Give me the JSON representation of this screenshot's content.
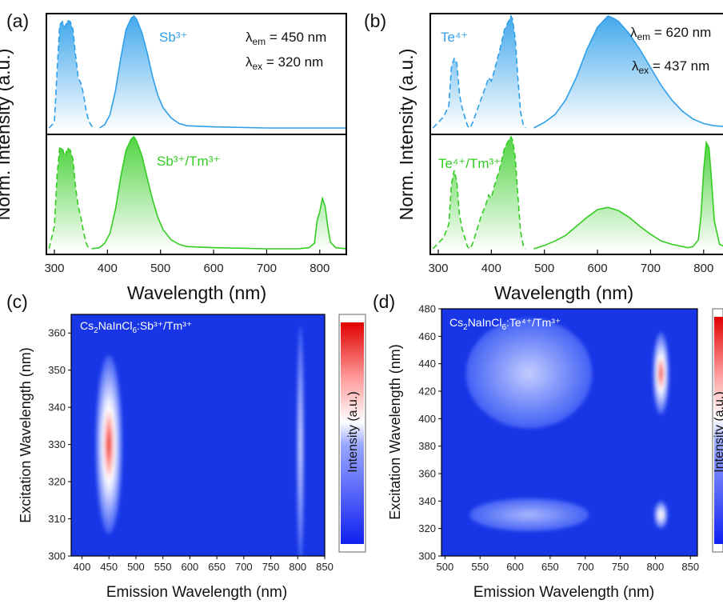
{
  "panels": {
    "a": {
      "label": "(a)"
    },
    "b": {
      "label": "(b)"
    },
    "c": {
      "label": "(c)"
    },
    "d": {
      "label": "(d)"
    }
  },
  "text": {
    "norm_intensity": "Norm. Intensity (a.u.)",
    "wavelength_nm": "Wavelength (nm)",
    "excitation_wavelength": "Excitation Wavelength (nm)",
    "emission_wavelength": "Emission Wavelength (nm)",
    "intensity_au": "Intensity (a.u.)",
    "sb": "Sb³⁺",
    "sbtm": "Sb³⁺/Tm³⁺",
    "te": "Te⁴⁺",
    "tetm": "Te⁴⁺/Tm³⁺",
    "a_em_sym": "λ",
    "a_em_sub": "em",
    "a_em_val": " = 450 nm",
    "a_ex_sym": "λ",
    "a_ex_sub": "ex",
    "a_ex_val": " = 320 nm",
    "b_em_sym": "λ",
    "b_em_sub": "em",
    "b_em_val": " = 620 nm",
    "b_ex_sym": "λ",
    "b_ex_sub": "ex",
    "b_ex_val": " = 437 nm",
    "c_title_pre": "Cs",
    "c_title_2": "2",
    "c_title_mid": "NaInCl",
    "c_title_6": "6",
    "c_title_post": ":Sb³⁺/Tm³⁺",
    "d_title_pre": "Cs",
    "d_title_2": "2",
    "d_title_mid": "NaInCl",
    "d_title_6": "6",
    "d_title_post": ":Te⁴⁺/Tm³⁺"
  },
  "colors": {
    "blue": "#2f9fea",
    "green": "#33cc22",
    "map_low": "#1836e6",
    "map_high": "#e01818"
  },
  "chart_data": [
    {
      "id": "a",
      "type": "line",
      "xlabel": "Wavelength (nm)",
      "ylabel": "Norm. Intensity (a.u.)",
      "xlim": [
        285,
        850
      ],
      "x_ticks": [
        300,
        400,
        500,
        600,
        700,
        800
      ],
      "series": [
        {
          "name": "Sb³⁺",
          "kind": "excitation",
          "style": "dashed",
          "x": [
            290,
            300,
            305,
            310,
            315,
            320,
            325,
            330,
            335,
            340,
            345,
            350,
            355,
            360,
            365,
            370,
            375
          ],
          "y": [
            0.0,
            0.05,
            0.5,
            0.92,
            0.95,
            0.9,
            0.96,
            0.95,
            0.88,
            0.65,
            0.45,
            0.4,
            0.3,
            0.15,
            0.06,
            0.02,
            0.0
          ]
        },
        {
          "name": "Sb³⁺",
          "kind": "emission",
          "style": "solid",
          "x": [
            385,
            395,
            405,
            415,
            425,
            435,
            445,
            450,
            455,
            465,
            475,
            485,
            495,
            505,
            520,
            535,
            550,
            600,
            700,
            800,
            850
          ],
          "y": [
            0.0,
            0.03,
            0.12,
            0.33,
            0.62,
            0.88,
            0.98,
            1.0,
            0.97,
            0.85,
            0.67,
            0.46,
            0.29,
            0.18,
            0.09,
            0.04,
            0.02,
            0.01,
            0.0,
            0.0,
            0.0
          ]
        },
        {
          "name": "Sb³⁺/Tm³⁺",
          "kind": "excitation",
          "style": "dashed",
          "x": [
            290,
            300,
            305,
            310,
            315,
            320,
            325,
            330,
            335,
            340,
            345,
            350,
            355,
            360,
            365
          ],
          "y": [
            0.0,
            0.2,
            0.65,
            0.9,
            0.9,
            0.82,
            0.9,
            0.88,
            0.8,
            0.55,
            0.38,
            0.28,
            0.15,
            0.05,
            0.0
          ]
        },
        {
          "name": "Sb³⁺/Tm³⁺",
          "kind": "emission",
          "style": "solid",
          "x": [
            370,
            385,
            395,
            405,
            415,
            425,
            435,
            445,
            450,
            455,
            465,
            475,
            485,
            495,
            505,
            520,
            535,
            550,
            600,
            700,
            760,
            780,
            790,
            795,
            800,
            805,
            810,
            815,
            820,
            830,
            850
          ],
          "y": [
            0.0,
            0.01,
            0.05,
            0.14,
            0.35,
            0.64,
            0.88,
            0.98,
            1.0,
            0.96,
            0.83,
            0.63,
            0.44,
            0.28,
            0.17,
            0.08,
            0.04,
            0.02,
            0.01,
            0.0,
            0.0,
            0.01,
            0.05,
            0.25,
            0.33,
            0.45,
            0.38,
            0.2,
            0.06,
            0.01,
            0.0
          ]
        }
      ]
    },
    {
      "id": "b",
      "type": "line",
      "xlabel": "Wavelength (nm)",
      "ylabel": "Norm. Intensity (a.u.)",
      "xlim": [
        285,
        850
      ],
      "x_ticks": [
        300,
        400,
        500,
        600,
        700,
        800
      ],
      "series": [
        {
          "name": "Te⁴⁺",
          "kind": "excitation",
          "style": "dashed",
          "x": [
            290,
            310,
            320,
            325,
            330,
            335,
            340,
            345,
            350,
            355,
            360,
            365,
            380,
            390,
            395,
            400,
            405,
            415,
            425,
            435,
            437,
            440,
            445,
            450,
            455,
            460,
            465
          ],
          "y": [
            0.0,
            0.1,
            0.2,
            0.55,
            0.62,
            0.58,
            0.3,
            0.18,
            0.1,
            0.02,
            0.0,
            0.05,
            0.25,
            0.38,
            0.45,
            0.42,
            0.5,
            0.68,
            0.88,
            0.98,
            1.0,
            0.97,
            0.8,
            0.45,
            0.15,
            0.03,
            0.0
          ]
        },
        {
          "name": "Te⁴⁺",
          "kind": "emission",
          "style": "solid",
          "x": [
            480,
            500,
            520,
            540,
            560,
            580,
            600,
            620,
            630,
            640,
            660,
            680,
            700,
            720,
            740,
            760,
            780,
            800,
            820,
            850
          ],
          "y": [
            0.0,
            0.05,
            0.12,
            0.25,
            0.45,
            0.7,
            0.9,
            1.0,
            0.98,
            0.95,
            0.84,
            0.7,
            0.54,
            0.38,
            0.25,
            0.15,
            0.08,
            0.04,
            0.02,
            0.01
          ]
        },
        {
          "name": "Te⁴⁺/Tm³⁺",
          "kind": "excitation",
          "style": "dashed",
          "x": [
            290,
            310,
            320,
            325,
            330,
            335,
            340,
            345,
            350,
            355,
            360,
            365,
            380,
            390,
            395,
            400,
            405,
            415,
            425,
            435,
            437,
            440,
            445,
            450,
            455,
            460,
            465
          ],
          "y": [
            0.0,
            0.1,
            0.22,
            0.58,
            0.7,
            0.6,
            0.3,
            0.18,
            0.1,
            0.02,
            0.0,
            0.05,
            0.28,
            0.4,
            0.48,
            0.45,
            0.55,
            0.7,
            0.9,
            0.99,
            1.0,
            0.97,
            0.82,
            0.48,
            0.16,
            0.03,
            0.0
          ]
        },
        {
          "name": "Te⁴⁺/Tm³⁺",
          "kind": "emission",
          "style": "solid",
          "x": [
            480,
            500,
            520,
            540,
            560,
            580,
            600,
            620,
            640,
            660,
            680,
            700,
            720,
            740,
            760,
            770,
            780,
            790,
            795,
            800,
            805,
            810,
            815,
            820,
            830,
            850
          ],
          "y": [
            0.0,
            0.03,
            0.07,
            0.12,
            0.2,
            0.28,
            0.35,
            0.37,
            0.34,
            0.28,
            0.2,
            0.13,
            0.07,
            0.04,
            0.02,
            0.01,
            0.02,
            0.08,
            0.3,
            0.7,
            0.95,
            0.9,
            0.6,
            0.25,
            0.04,
            0.0
          ]
        }
      ]
    },
    {
      "id": "c",
      "type": "heatmap",
      "title": "Cs₂NaInCl₆:Sb³⁺/Tm³⁺",
      "xlabel": "Emission Wavelength (nm)",
      "ylabel": "Excitation Wavelength (nm)",
      "colorbar_label": "Intensity (a.u.)",
      "xlim": [
        380,
        850
      ],
      "ylim": [
        300,
        365
      ],
      "x_ticks": [
        400,
        450,
        500,
        550,
        600,
        650,
        700,
        750,
        800,
        850
      ],
      "y_ticks": [
        300,
        310,
        320,
        330,
        340,
        350,
        360
      ],
      "peaks": [
        {
          "x": 450,
          "y": 330,
          "x_width": 25,
          "y_width": 24,
          "intensity": 1.0
        },
        {
          "x": 805,
          "y": 330,
          "x_width": 7,
          "y_width": 32,
          "intensity": 0.45
        }
      ]
    },
    {
      "id": "d",
      "type": "heatmap",
      "title": "Cs₂NaInCl₆:Te⁴⁺/Tm³⁺",
      "xlabel": "Emission Wavelength (nm)",
      "ylabel": "Excitation Wavelength (nm)",
      "colorbar_label": "Intensity (a.u.)",
      "xlim": [
        495,
        860
      ],
      "ylim": [
        300,
        480
      ],
      "x_ticks": [
        500,
        550,
        600,
        650,
        700,
        750,
        800,
        850
      ],
      "y_ticks": [
        300,
        320,
        340,
        360,
        380,
        400,
        420,
        440,
        460,
        480
      ],
      "peaks": [
        {
          "x": 620,
          "y": 433,
          "x_width": 90,
          "y_width": 40,
          "intensity": 0.38
        },
        {
          "x": 620,
          "y": 330,
          "x_width": 85,
          "y_width": 12,
          "intensity": 0.3
        },
        {
          "x": 808,
          "y": 433,
          "x_width": 12,
          "y_width": 30,
          "intensity": 1.0
        },
        {
          "x": 808,
          "y": 330,
          "x_width": 10,
          "y_width": 10,
          "intensity": 0.7
        }
      ]
    }
  ]
}
